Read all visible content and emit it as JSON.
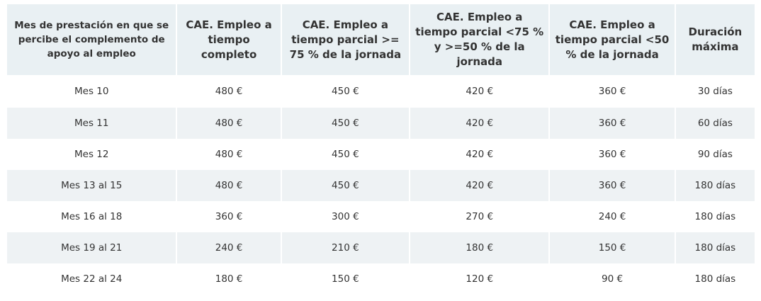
{
  "table": {
    "headers": [
      "Mes de prestación en que se percibe el complemento de apoyo al empleo",
      "CAE. Empleo a tiempo completo",
      "CAE. Empleo a tiempo parcial >= 75 % de la jornada",
      "CAE. Empleo a tiempo parcial <75 % y >=50 % de la jornada",
      "CAE. Empleo a tiempo parcial <50 % de la jornada",
      "Duración máxima"
    ],
    "rows": [
      [
        "Mes 10",
        "480 €",
        "450 €",
        "420 €",
        "360 €",
        "30 días"
      ],
      [
        "Mes 11",
        "480 €",
        "450 €",
        "420 €",
        "360 €",
        "60 días"
      ],
      [
        "Mes 12",
        "480 €",
        "450 €",
        "420 €",
        "360 €",
        "90 días"
      ],
      [
        "Mes 13 al 15",
        "480 €",
        "450 €",
        "420 €",
        "360 €",
        "180 días"
      ],
      [
        "Mes 16 al 18",
        "360 €",
        "300 €",
        "270 €",
        "240 €",
        "180 días"
      ],
      [
        "Mes 19 al 21",
        "240 €",
        "210 €",
        "180 €",
        "150 €",
        "180 días"
      ],
      [
        "Mes 22 al 24",
        "180 €",
        "150 €",
        "120 €",
        "90 €",
        "180 días"
      ]
    ]
  }
}
